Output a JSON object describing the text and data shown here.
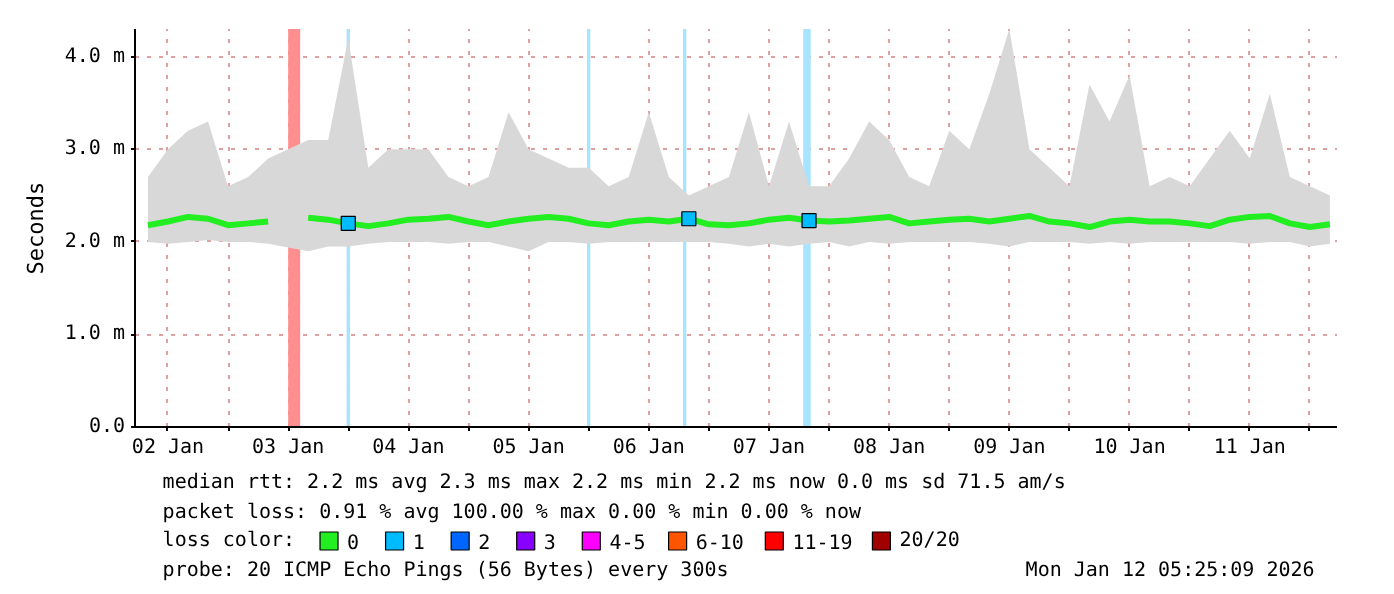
{
  "chart_data": {
    "type": "line",
    "ylabel": "Seconds",
    "x": [
      "2026-01-02T08:00",
      "2026-01-02T12:00",
      "2026-01-02T16:00",
      "2026-01-02T20:00",
      "2026-01-03T00:00",
      "2026-01-03T04:00",
      "2026-01-03T08:00",
      "2026-01-03T12:00",
      "2026-01-03T16:00",
      "2026-01-03T20:00",
      "2026-01-04T00:00",
      "2026-01-04T04:00",
      "2026-01-04T08:00",
      "2026-01-04T12:00",
      "2026-01-04T16:00",
      "2026-01-04T20:00",
      "2026-01-05T00:00",
      "2026-01-05T04:00",
      "2026-01-05T08:00",
      "2026-01-05T12:00",
      "2026-01-05T16:00",
      "2026-01-05T20:00",
      "2026-01-06T00:00",
      "2026-01-06T04:00",
      "2026-01-06T08:00",
      "2026-01-06T12:00",
      "2026-01-06T16:00",
      "2026-01-06T20:00",
      "2026-01-07T00:00",
      "2026-01-07T04:00",
      "2026-01-07T08:00",
      "2026-01-07T12:00",
      "2026-01-07T16:00",
      "2026-01-07T20:00",
      "2026-01-08T00:00",
      "2026-01-08T04:00",
      "2026-01-08T08:00",
      "2026-01-08T12:00",
      "2026-01-08T16:00",
      "2026-01-08T20:00",
      "2026-01-09T00:00",
      "2026-01-09T04:00",
      "2026-01-09T08:00",
      "2026-01-09T12:00",
      "2026-01-09T16:00",
      "2026-01-09T20:00",
      "2026-01-10T00:00",
      "2026-01-10T04:00",
      "2026-01-10T08:00",
      "2026-01-10T12:00",
      "2026-01-10T16:00",
      "2026-01-10T20:00",
      "2026-01-11T00:00",
      "2026-01-11T04:00",
      "2026-01-11T08:00",
      "2026-01-11T12:00",
      "2026-01-11T16:00",
      "2026-01-11T20:00",
      "2026-01-12T00:00",
      "2026-01-12T04:00"
    ],
    "xlim": [
      "2026-01-02T05:25",
      "2026-01-12T05:25"
    ],
    "xticks": [
      {
        "value": "2026-01-02T12:00",
        "label": "02 Jan"
      },
      {
        "value": "2026-01-03T00:00",
        "label": null
      },
      {
        "value": "2026-01-03T12:00",
        "label": "03 Jan"
      },
      {
        "value": "2026-01-04T00:00",
        "label": null
      },
      {
        "value": "2026-01-04T12:00",
        "label": "04 Jan"
      },
      {
        "value": "2026-01-05T00:00",
        "label": null
      },
      {
        "value": "2026-01-05T12:00",
        "label": "05 Jan"
      },
      {
        "value": "2026-01-06T00:00",
        "label": null
      },
      {
        "value": "2026-01-06T12:00",
        "label": "06 Jan"
      },
      {
        "value": "2026-01-07T00:00",
        "label": null
      },
      {
        "value": "2026-01-07T12:00",
        "label": "07 Jan"
      },
      {
        "value": "2026-01-08T00:00",
        "label": null
      },
      {
        "value": "2026-01-08T12:00",
        "label": "08 Jan"
      },
      {
        "value": "2026-01-09T00:00",
        "label": null
      },
      {
        "value": "2026-01-09T12:00",
        "label": "09 Jan"
      },
      {
        "value": "2026-01-10T00:00",
        "label": null
      },
      {
        "value": "2026-01-10T12:00",
        "label": "10 Jan"
      },
      {
        "value": "2026-01-11T00:00",
        "label": null
      },
      {
        "value": "2026-01-11T12:00",
        "label": "11 Jan"
      },
      {
        "value": "2026-01-12T00:00",
        "label": null
      }
    ],
    "ylim": [
      0,
      4.3
    ],
    "yticks": [
      {
        "value": 0,
        "label": "0.0"
      },
      {
        "value": 1,
        "label": "1.0 m"
      },
      {
        "value": 2,
        "label": "2.0 m"
      },
      {
        "value": 3,
        "label": "3.0 m"
      },
      {
        "value": 4,
        "label": "4.0 m"
      }
    ],
    "grid": true,
    "legend": "bottom",
    "legend_title": "loss color:",
    "series": [
      {
        "name": "0",
        "color": "#22ee22",
        "values": [
          2.18,
          2.22,
          2.27,
          2.25,
          2.18,
          2.2,
          2.22,
          null,
          2.26,
          2.24,
          2.2,
          2.17,
          2.2,
          2.24,
          2.25,
          2.27,
          2.22,
          2.18,
          2.22,
          2.25,
          2.27,
          2.25,
          2.2,
          2.18,
          2.22,
          2.24,
          2.22,
          2.25,
          2.19,
          2.18,
          2.2,
          2.24,
          2.26,
          2.23,
          2.22,
          2.23,
          2.25,
          2.27,
          2.2,
          2.22,
          2.24,
          2.25,
          2.22,
          2.25,
          2.28,
          2.22,
          2.2,
          2.16,
          2.22,
          2.24,
          2.22,
          2.22,
          2.2,
          2.17,
          2.24,
          2.27,
          2.28,
          2.2,
          2.16,
          2.19
        ],
        "lower": [
          2.0,
          1.98,
          2.0,
          2.02,
          2.0,
          2.0,
          1.98,
          null,
          1.9,
          1.95,
          1.95,
          1.98,
          2.0,
          2.0,
          2.0,
          1.98,
          2.0,
          2.0,
          1.95,
          1.9,
          2.0,
          2.0,
          1.98,
          2.0,
          2.0,
          2.0,
          2.0,
          2.0,
          2.0,
          1.98,
          1.95,
          1.98,
          1.95,
          1.98,
          2.0,
          1.95,
          2.0,
          1.98,
          2.0,
          2.0,
          2.0,
          2.0,
          1.98,
          1.95,
          2.0,
          2.0,
          2.0,
          1.98,
          2.0,
          1.98,
          2.0,
          2.0,
          2.0,
          2.0,
          2.0,
          1.98,
          2.0,
          2.0,
          1.95,
          1.98
        ],
        "upper": [
          2.7,
          3.0,
          3.2,
          3.3,
          2.6,
          2.7,
          2.9,
          null,
          3.1,
          3.1,
          4.2,
          2.8,
          3.0,
          3.0,
          3.0,
          2.7,
          2.6,
          2.7,
          3.4,
          3.0,
          2.9,
          2.8,
          2.8,
          2.6,
          2.7,
          3.4,
          2.7,
          2.5,
          2.6,
          2.7,
          3.4,
          2.6,
          3.3,
          2.6,
          2.6,
          2.9,
          3.3,
          3.1,
          2.7,
          2.6,
          3.2,
          3.0,
          3.6,
          4.3,
          3.0,
          2.8,
          2.6,
          3.7,
          3.3,
          3.8,
          2.6,
          2.7,
          2.6,
          2.9,
          3.2,
          2.9,
          3.6,
          2.7,
          2.6,
          2.5
        ]
      },
      {
        "name": "1",
        "type": "scatter",
        "marker": "square",
        "color": "#00bbff",
        "values": [
          null,
          null,
          null,
          null,
          null,
          null,
          null,
          null,
          null,
          null,
          2.2,
          null,
          null,
          null,
          null,
          null,
          null,
          null,
          null,
          null,
          null,
          null,
          null,
          null,
          null,
          null,
          null,
          2.25,
          null,
          null,
          null,
          null,
          null,
          2.23,
          null,
          null,
          null,
          null,
          null,
          null,
          null,
          null,
          null,
          null,
          null,
          null,
          null,
          null,
          null,
          null,
          null,
          null,
          null,
          null,
          null,
          null,
          null,
          null,
          null,
          null
        ]
      },
      {
        "name": "2",
        "type": "scatter",
        "marker": "square",
        "color": "#0066ff",
        "values": [
          null,
          null,
          null,
          null,
          null,
          null,
          null,
          null,
          null,
          null,
          null,
          null,
          null,
          null,
          null,
          null,
          null,
          null,
          null,
          null,
          null,
          null,
          null,
          null,
          null,
          null,
          null,
          null,
          null,
          null,
          null,
          null,
          null,
          null,
          null,
          null,
          null,
          null,
          null,
          null,
          null,
          null,
          null,
          null,
          null,
          null,
          null,
          null,
          null,
          null,
          null,
          null,
          null,
          null,
          null,
          null,
          null,
          null,
          null,
          null
        ]
      },
      {
        "name": "3",
        "type": "scatter",
        "marker": "square",
        "color": "#8800ff",
        "values": [
          null,
          null,
          null,
          null,
          null,
          null,
          null,
          null,
          null,
          null,
          null,
          null,
          null,
          null,
          null,
          null,
          null,
          null,
          null,
          null,
          null,
          null,
          null,
          null,
          null,
          null,
          null,
          null,
          null,
          null,
          null,
          null,
          null,
          null,
          null,
          null,
          null,
          null,
          null,
          null,
          null,
          null,
          null,
          null,
          null,
          null,
          null,
          null,
          null,
          null,
          null,
          null,
          null,
          null,
          null,
          null,
          null,
          null,
          null,
          null
        ]
      },
      {
        "name": "4-5",
        "type": "scatter",
        "marker": "square",
        "color": "#ff00ff",
        "values": [
          null,
          null,
          null,
          null,
          null,
          null,
          null,
          null,
          null,
          null,
          null,
          null,
          null,
          null,
          null,
          null,
          null,
          null,
          null,
          null,
          null,
          null,
          null,
          null,
          null,
          null,
          null,
          null,
          null,
          null,
          null,
          null,
          null,
          null,
          null,
          null,
          null,
          null,
          null,
          null,
          null,
          null,
          null,
          null,
          null,
          null,
          null,
          null,
          null,
          null,
          null,
          null,
          null,
          null,
          null,
          null,
          null,
          null,
          null,
          null
        ]
      },
      {
        "name": "6-10",
        "type": "scatter",
        "marker": "square",
        "color": "#ff5500",
        "values": [
          null,
          null,
          null,
          null,
          null,
          null,
          null,
          null,
          null,
          null,
          null,
          null,
          null,
          null,
          null,
          null,
          null,
          null,
          null,
          null,
          null,
          null,
          null,
          null,
          null,
          null,
          null,
          null,
          null,
          null,
          null,
          null,
          null,
          null,
          null,
          null,
          null,
          null,
          null,
          null,
          null,
          null,
          null,
          null,
          null,
          null,
          null,
          null,
          null,
          null,
          null,
          null,
          null,
          null,
          null,
          null,
          null,
          null,
          null,
          null
        ]
      },
      {
        "name": "11-19",
        "type": "scatter",
        "marker": "square",
        "color": "#ff0000",
        "values": [
          null,
          null,
          null,
          null,
          null,
          null,
          null,
          null,
          null,
          null,
          null,
          null,
          null,
          null,
          null,
          null,
          null,
          null,
          null,
          null,
          null,
          null,
          null,
          null,
          null,
          null,
          null,
          null,
          null,
          null,
          null,
          null,
          null,
          null,
          null,
          null,
          null,
          null,
          null,
          null,
          null,
          null,
          null,
          null,
          null,
          null,
          null,
          null,
          null,
          null,
          null,
          null,
          null,
          null,
          null,
          null,
          null,
          null,
          null,
          null
        ]
      },
      {
        "name": "20/20",
        "type": "scatter",
        "marker": "square",
        "color": "#a00000",
        "values": [
          null,
          null,
          null,
          null,
          null,
          null,
          null,
          null,
          null,
          null,
          null,
          null,
          null,
          null,
          null,
          null,
          null,
          null,
          null,
          null,
          null,
          null,
          null,
          null,
          null,
          null,
          null,
          null,
          null,
          null,
          null,
          null,
          null,
          null,
          null,
          null,
          null,
          null,
          null,
          null,
          null,
          null,
          null,
          null,
          null,
          null,
          null,
          null,
          null,
          null,
          null,
          null,
          null,
          null,
          null,
          null,
          null,
          null,
          null,
          null
        ]
      }
    ],
    "bands": [
      {
        "axis": "x",
        "from": "2026-01-03T12:00",
        "to": "2026-01-03T14:24",
        "color": "#ff8f8f"
      },
      {
        "axis": "x",
        "from": "2026-01-03T23:40",
        "to": "2026-01-04T00:20",
        "color": "#a8e4ff"
      },
      {
        "axis": "x",
        "from": "2026-01-05T23:40",
        "to": "2026-01-06T00:20",
        "color": "#a8e4ff"
      },
      {
        "axis": "x",
        "from": "2026-01-06T18:50",
        "to": "2026-01-06T19:30",
        "color": "#a8e4ff"
      },
      {
        "axis": "x",
        "from": "2026-01-07T18:50",
        "to": "2026-01-07T20:20",
        "color": "#a8e4ff"
      }
    ],
    "annotations": [
      "median rtt:  2.2 ms avg  2.3 ms max  2.2 ms min  2.2 ms now  0.0 ms sd  71.5   am/s",
      "packet loss: 0.91 % avg  100.00 % max  0.00 % min  0.00 % now",
      "probe:       20 ICMP Echo Pings (56 Bytes) every 300s",
      "Mon Jan 12 05:25:09 2026"
    ]
  }
}
